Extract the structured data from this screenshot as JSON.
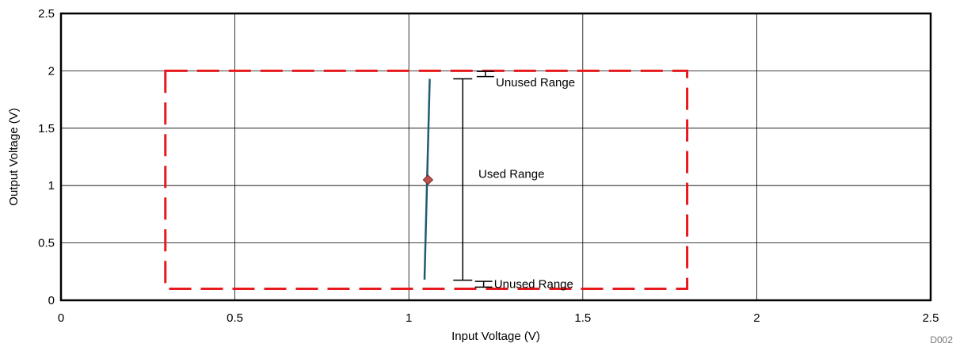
{
  "chart_data": {
    "type": "line",
    "xlabel": "Input Voltage (V)",
    "ylabel": "Output Voltage (V)",
    "xlim": [
      0,
      2.5
    ],
    "ylim": [
      0,
      2.5
    ],
    "xticks": [
      0,
      0.5,
      1,
      1.5,
      2,
      2.5
    ],
    "xtick_labels": [
      "0",
      "0.5",
      "1",
      "1.5",
      "2",
      "2.5"
    ],
    "yticks": [
      0,
      0.5,
      1,
      1.5,
      2,
      2.5
    ],
    "ytick_labels": [
      "0",
      "0.5",
      "1",
      "1.5",
      "2",
      "2.5"
    ],
    "grid": true,
    "series": [
      {
        "x": [
          1.045,
          1.06
        ],
        "y": [
          0.18,
          1.93
        ],
        "color": "#1F5B74"
      }
    ],
    "marker": {
      "x": 1.055,
      "y": 1.05,
      "shape": "diamond",
      "color": "#C0504D"
    },
    "box": {
      "x": [
        0.3,
        1.8
      ],
      "y": [
        0.1,
        2.0
      ],
      "color": "#E8191C",
      "style": "dashed"
    },
    "ranges": {
      "used": {
        "x": 1.155,
        "y": [
          0.175,
          1.93
        ]
      },
      "unused_top": {
        "x": 1.22,
        "y": [
          1.95,
          1.995
        ]
      },
      "unused_bottom": {
        "x": 1.215,
        "y": [
          0.115,
          0.165
        ]
      }
    },
    "annotations": [
      {
        "id": "unused-top",
        "text": "Unused Range",
        "x": 1.25,
        "y": 1.9
      },
      {
        "id": "used",
        "text": "Used Range",
        "x": 1.2,
        "y": 1.1
      },
      {
        "id": "unused-bottom",
        "text": "Unused Range",
        "x": 1.245,
        "y": 0.14
      }
    ],
    "watermark": "D002"
  }
}
